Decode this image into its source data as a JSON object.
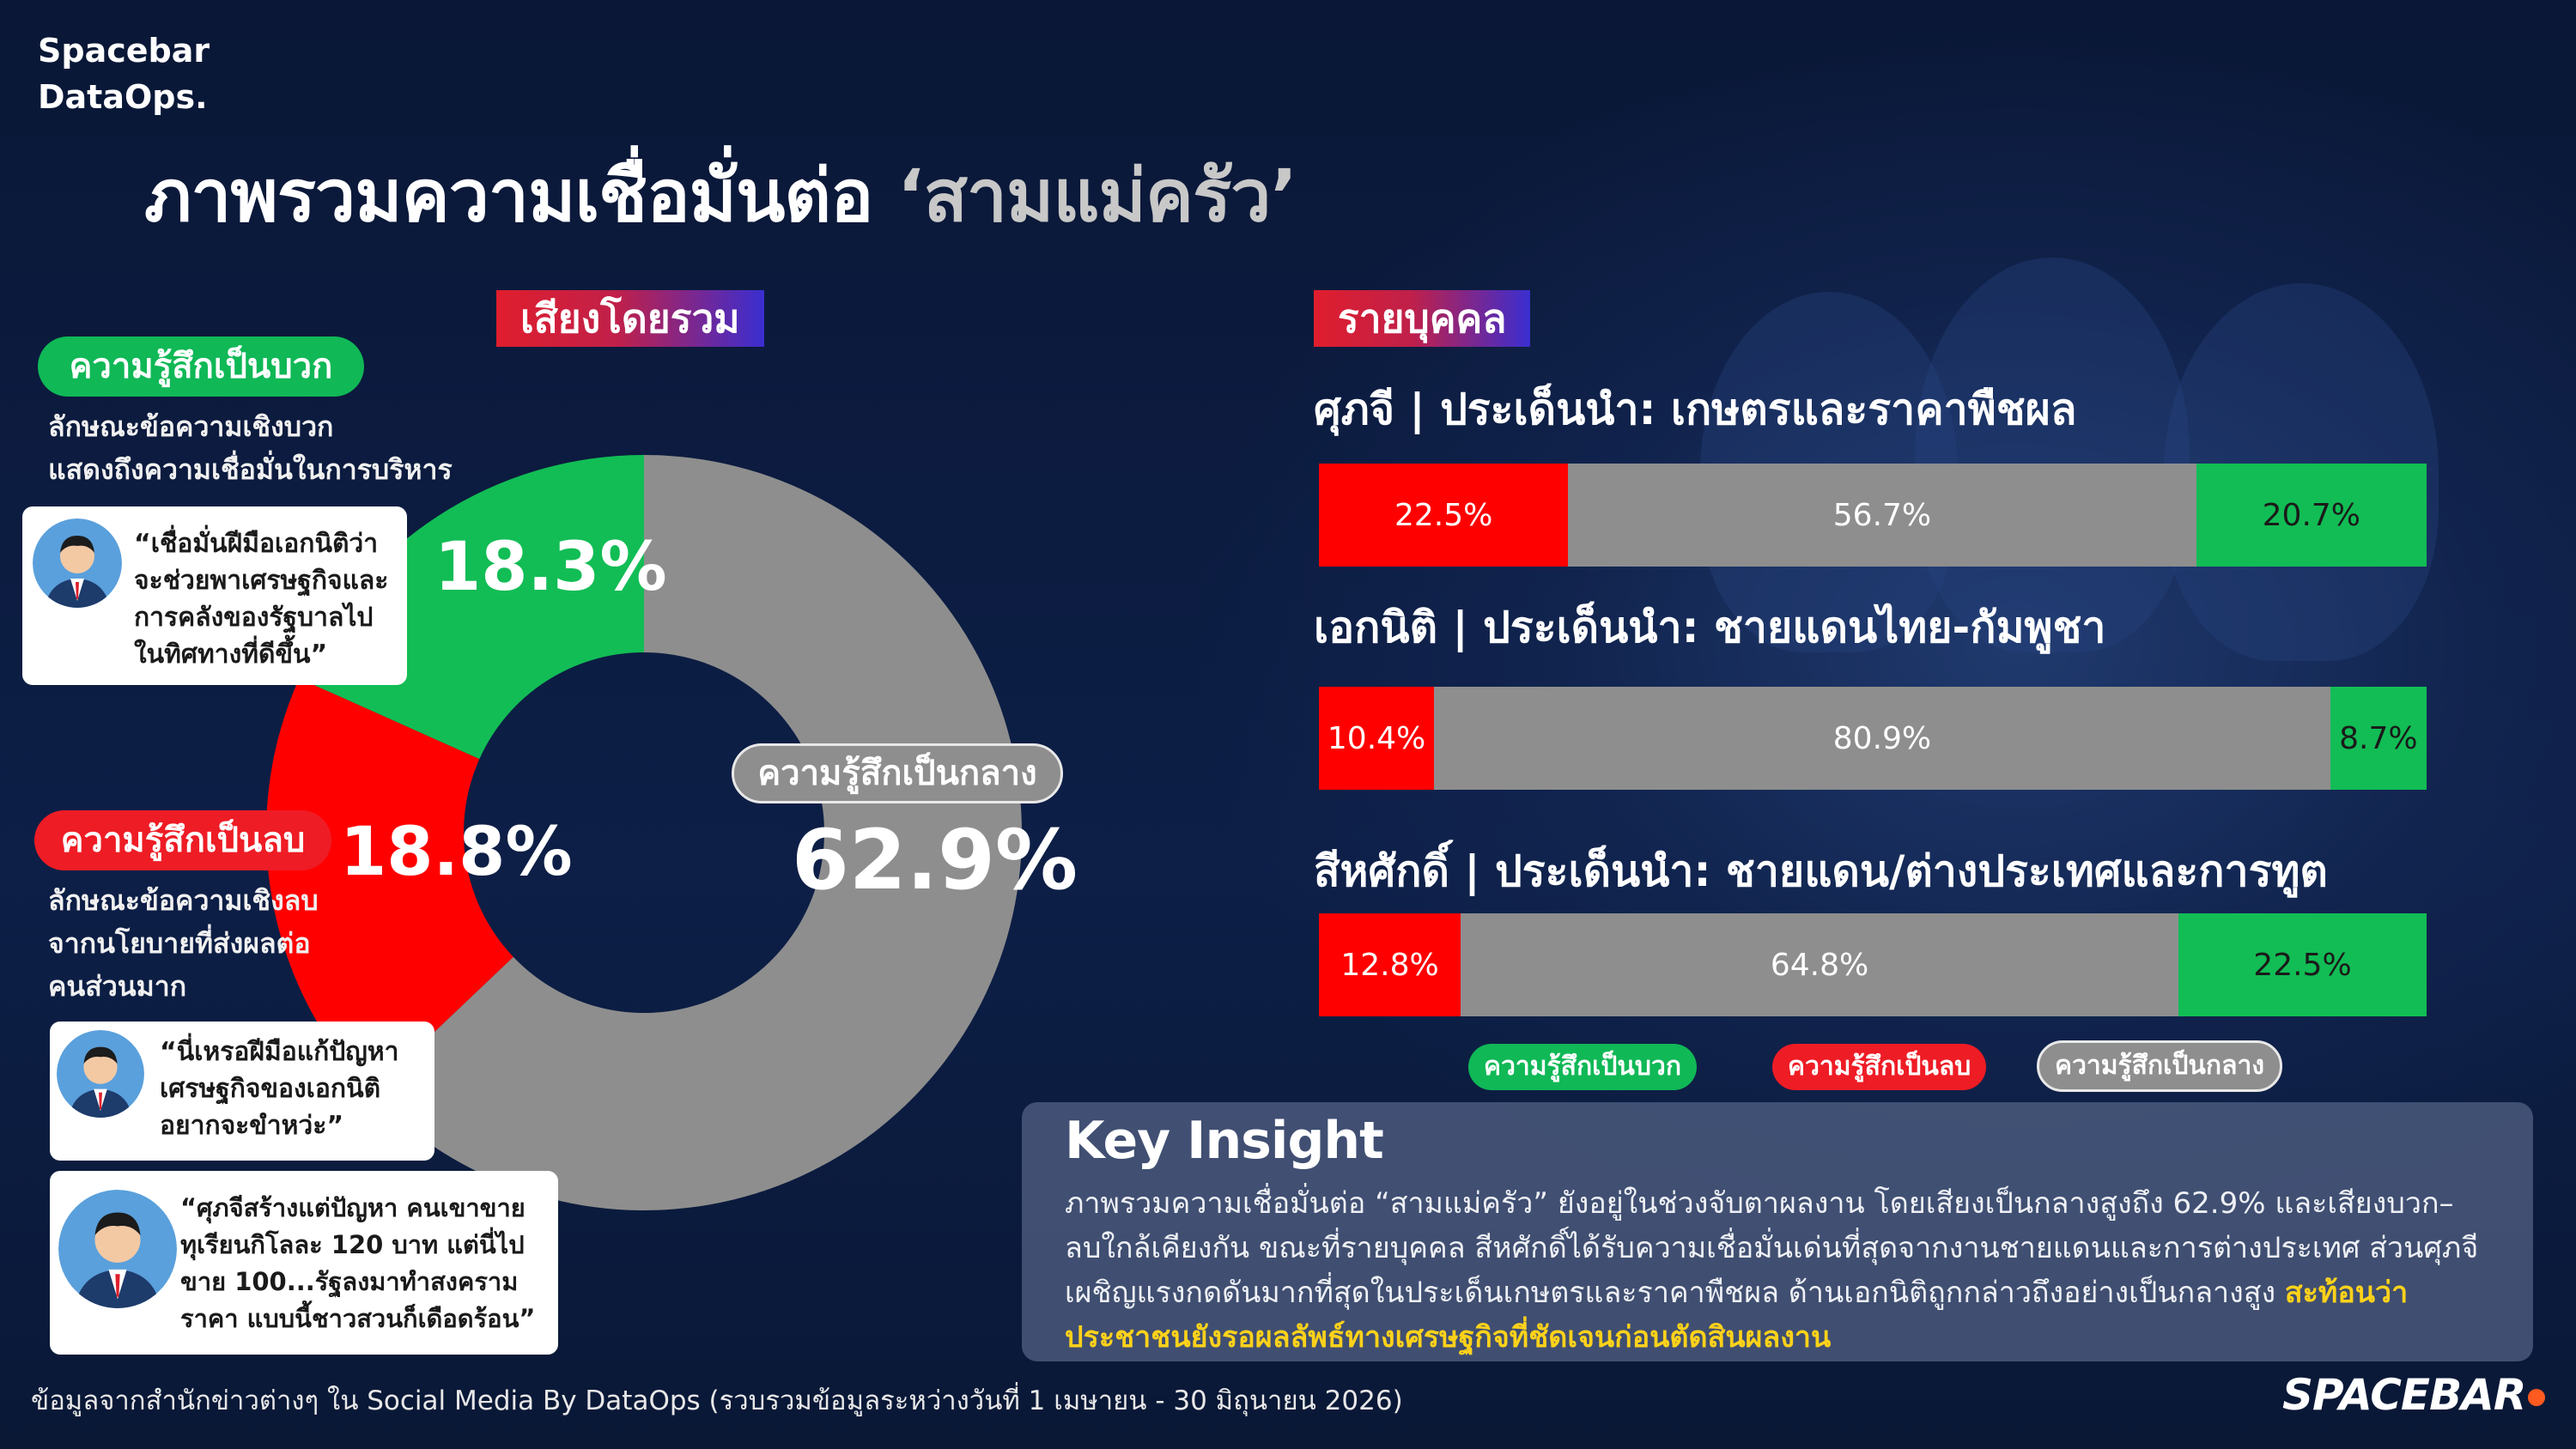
{
  "brand": {
    "line1": "Spacebar",
    "line2": "DataOps."
  },
  "title": {
    "main": "ภาพรวมความเชื่อมั่นต่อ ",
    "quoted": "‘สามแม่ครัว’"
  },
  "overall": {
    "tag": "เสียงโดยรวม",
    "positive": {
      "label": "ความรู้สึกเป็นบวก",
      "desc1": "ลักษณะข้อความเชิงบวก",
      "desc2": "แสดงถึงความเชื่อมั่นในการบริหาร",
      "pct": "18.3%",
      "quote": [
        "“เชื่อมั่นฝีมือเอกนิติว่า",
        "จะช่วยพาเศรษฐกิจและ",
        "การคลังของรัฐบาลไป",
        "ในทิศทางที่ดีขึ้น”"
      ]
    },
    "negative": {
      "label": "ความรู้สึกเป็นลบ",
      "desc1": "ลักษณะข้อความเชิงลบ",
      "desc2": "จากนโยบายที่ส่งผลต่อ",
      "desc3": "คนส่วนมาก",
      "pct": "18.8%",
      "quote1": [
        "“นี่เหรอฝีมือแก้ปัญหา",
        "เศรษฐกิจของเอกนิติ",
        "อยากจะขำหว่ะ”"
      ],
      "quote2": [
        "“ศุภจีสร้างแต่ปัญหา คนเขาขาย",
        "ทุเรียนกิโลละ 120 บาท แต่นี่ไป",
        "ขาย 100...รัฐลงมาทำสงคราม",
        "ราคา แบบนี้ชาวสวนก็เดือดร้อน”"
      ]
    },
    "neutral": {
      "label": "ความรู้สึกเป็นกลาง",
      "pct": "62.9%"
    }
  },
  "chart_data": [
    {
      "type": "pie",
      "title": "เสียงโดยรวม",
      "labels": [
        "ความรู้สึกเป็นกลาง",
        "ความรู้สึกเป็นลบ",
        "ความรู้สึกเป็นบวก"
      ],
      "values": [
        62.9,
        18.8,
        18.3
      ],
      "colors": [
        "#8e8e8e",
        "#ff0000",
        "#12bd55"
      ],
      "donut": true
    },
    {
      "type": "bar",
      "stacked": true,
      "orientation": "horizontal",
      "title": "รายบุคคล",
      "categories": [
        "ศุภจี | ประเด็นนำ: เกษตรและราคาพืชผล",
        "เอกนิติ | ประเด็นนำ: ชายแดนไทย-กัมพูชา",
        "สีหศักดิ์ | ประเด็นนำ: ชายแดน/ต่างประเทศและการทูต"
      ],
      "series": [
        {
          "name": "ความรู้สึกเป็นลบ",
          "values": [
            22.5,
            10.4,
            12.8
          ],
          "color": "#ff0000"
        },
        {
          "name": "ความรู้สึกเป็นกลาง",
          "values": [
            56.7,
            80.9,
            64.8
          ],
          "color": "#8e8e8e"
        },
        {
          "name": "ความรู้สึกเป็นบวก",
          "values": [
            20.7,
            8.7,
            22.5
          ],
          "color": "#12bd55"
        }
      ],
      "legend": "bottom",
      "xlim": [
        0,
        100
      ]
    }
  ],
  "individual": {
    "tag": "รายบุคคล",
    "people": [
      {
        "heading": "ศุภจี | ประเด็นนำ: เกษตรและราคาพืชผล",
        "neg": "22.5%",
        "neu": "56.7%",
        "pos": "20.7%"
      },
      {
        "heading": "เอกนิติ | ประเด็นนำ: ชายแดนไทย-กัมพูชา",
        "neg": "10.4%",
        "neu": "80.9%",
        "pos": "8.7%"
      },
      {
        "heading": "สีหศักดิ์ | ประเด็นนำ: ชายแดน/ต่างประเทศและการทูต",
        "neg": "12.8%",
        "neu": "64.8%",
        "pos": "22.5%"
      }
    ],
    "legend": {
      "pos": "ความรู้สึกเป็นบวก",
      "neg": "ความรู้สึกเป็นลบ",
      "neu": "ความรู้สึกเป็นกลาง"
    }
  },
  "insight": {
    "heading": "Key Insight",
    "line1": "ภาพรวมความเชื่อมั่นต่อ “สามแม่ครัว” ยังอยู่ในช่วงจับตาผลงาน โดยเสียงเป็นกลางสูงถึง 62.9% และเสียงบวก–",
    "line2": "ลบใกล้เคียงกัน ขณะที่รายบุคคล สีหศักดิ์ได้รับความเชื่อมั่นเด่นที่สุดจากงานชายแดนและการต่างประเทศ ส่วนศุภจี",
    "line3": "เผชิญแรงกดดันมากที่สุดในประเด็นเกษตรและราคาพืชผล ด้านเอกนิติถูกกล่าวถึงอย่างเป็นกลางสูง ",
    "highlight1": "สะท้อนว่า",
    "highlight2": "ประชาชนยังรอผลลัพธ์ทางเศรษฐกิจที่ชัดเจนก่อนตัดสินผลงาน"
  },
  "footer": "ข้อมูลจากสำนักข่าวต่างๆ ใน Social Media By DataOps (รวบรวมข้อมูลระหว่างวันที่ 1 เมษายน - 30 มิถุนายน 2026)",
  "logo": "SPACEBAR"
}
